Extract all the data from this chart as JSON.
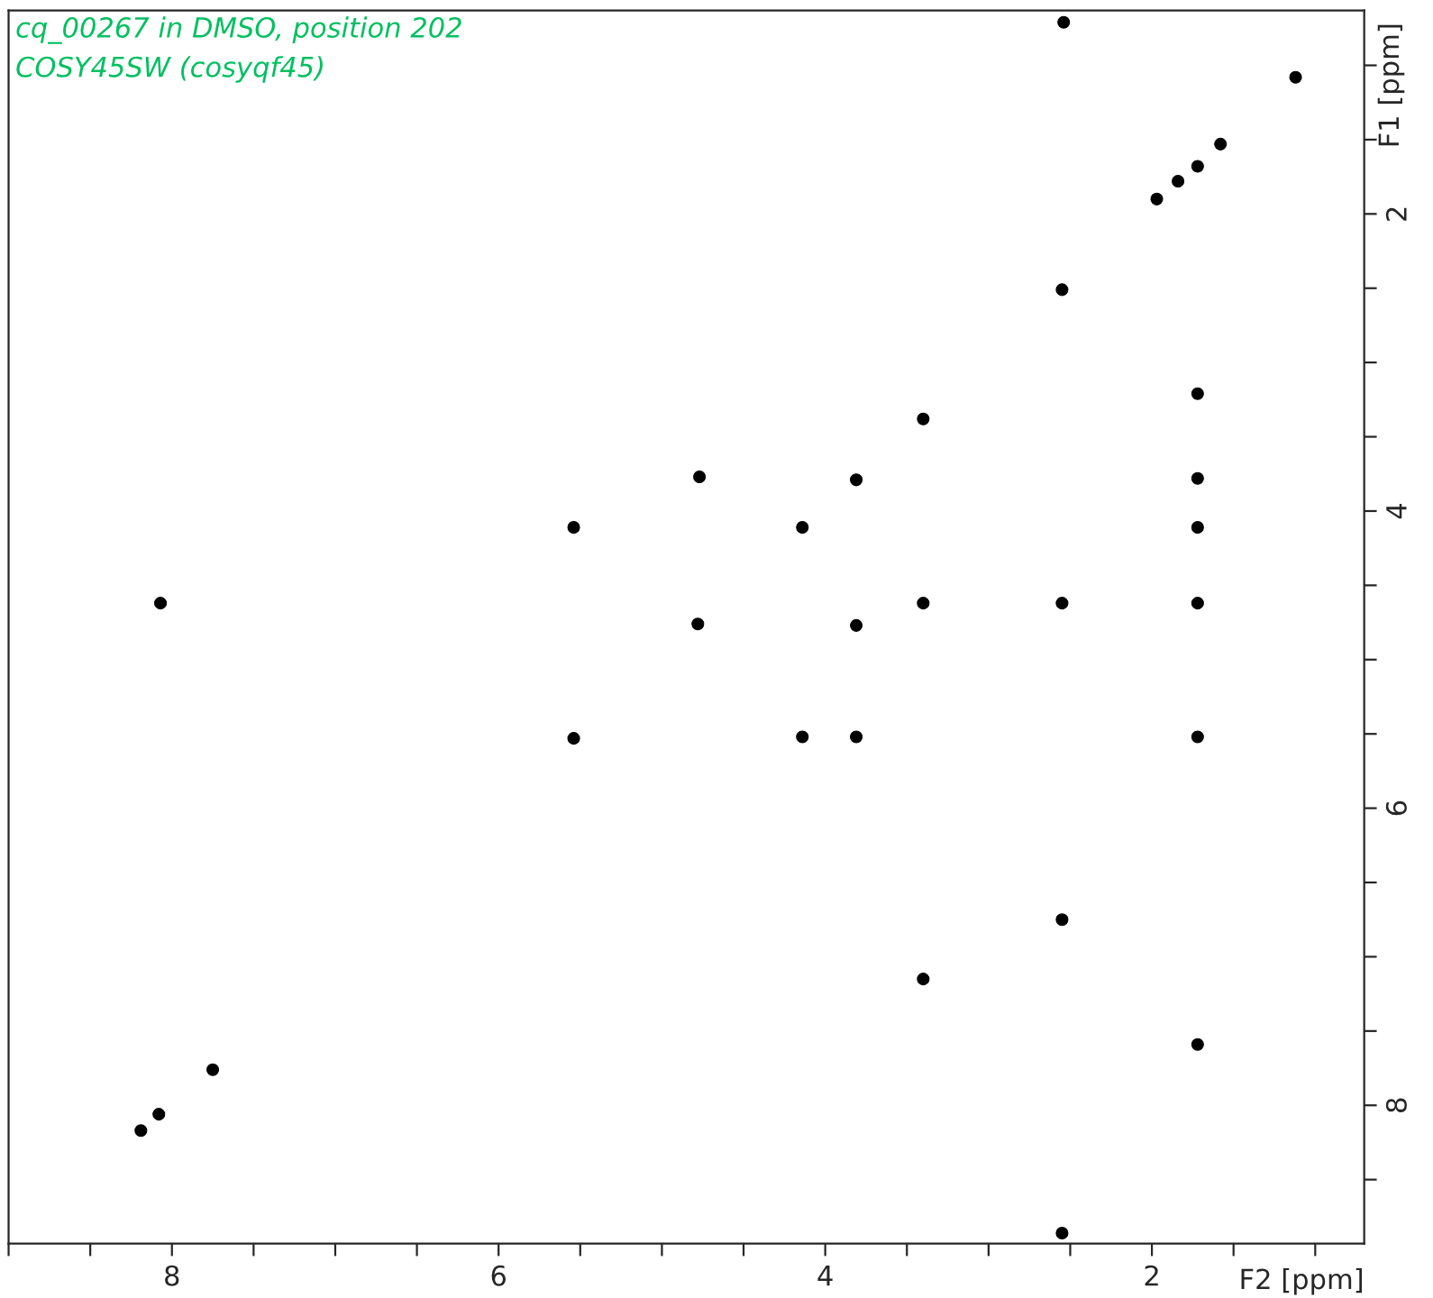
{
  "chart_data": {
    "type": "scatter",
    "annotations": [
      "cq_00267 in DMSO, position 202",
      "COSY45SW (cosyqf45)"
    ],
    "xlabel": "F2 [ppm]",
    "ylabel": "F1 [ppm]",
    "x": [
      2.54,
      1.12,
      1.72,
      1.58,
      1.84,
      1.97,
      2.55,
      1.72,
      3.4,
      4.77,
      3.81,
      1.72,
      5.54,
      4.14,
      1.72,
      8.07,
      3.4,
      2.55,
      1.72,
      4.78,
      3.81,
      5.54,
      4.14,
      3.81,
      1.72,
      2.55,
      3.4,
      1.72,
      7.75,
      8.08,
      8.19,
      2.55
    ],
    "values": [
      0.71,
      1.08,
      1.68,
      1.53,
      1.78,
      1.9,
      2.51,
      3.21,
      3.38,
      3.77,
      3.79,
      3.78,
      4.11,
      4.11,
      4.11,
      4.62,
      4.62,
      4.62,
      4.62,
      4.76,
      4.77,
      5.53,
      5.52,
      5.52,
      5.52,
      6.75,
      7.15,
      7.59,
      7.76,
      8.06,
      8.17,
      8.86
    ],
    "color": "#000000",
    "marker": "circle",
    "xlim": [
      9.0,
      0.7
    ],
    "ylim": [
      8.93,
      0.63
    ],
    "xticks": [
      {
        "value": 9.0,
        "label": null
      },
      {
        "value": 8.5,
        "label": null
      },
      8,
      {
        "value": 7.5,
        "label": null
      },
      {
        "value": 7.0,
        "label": null
      },
      {
        "value": 6.5,
        "label": null
      },
      6,
      {
        "value": 5.5,
        "label": null
      },
      {
        "value": 5.0,
        "label": null
      },
      {
        "value": 4.5,
        "label": null
      },
      4,
      {
        "value": 3.5,
        "label": null
      },
      {
        "value": 3.0,
        "label": null
      },
      {
        "value": 2.5,
        "label": null
      },
      2,
      {
        "value": 1.5,
        "label": null
      },
      {
        "value": 1.0,
        "label": null
      }
    ],
    "yticks": [
      {
        "value": 1.0,
        "label": null
      },
      {
        "value": 1.5,
        "label": null
      },
      2,
      {
        "value": 2.5,
        "label": null
      },
      {
        "value": 3.0,
        "label": null
      },
      {
        "value": 3.5,
        "label": null
      },
      4,
      {
        "value": 4.5,
        "label": null
      },
      {
        "value": 5.0,
        "label": null
      },
      {
        "value": 5.5,
        "label": null
      },
      6,
      {
        "value": 6.5,
        "label": null
      },
      {
        "value": 7.0,
        "label": null
      },
      {
        "value": 7.5,
        "label": null
      },
      8,
      {
        "value": 8.5,
        "label": null
      }
    ],
    "legend": false
  }
}
